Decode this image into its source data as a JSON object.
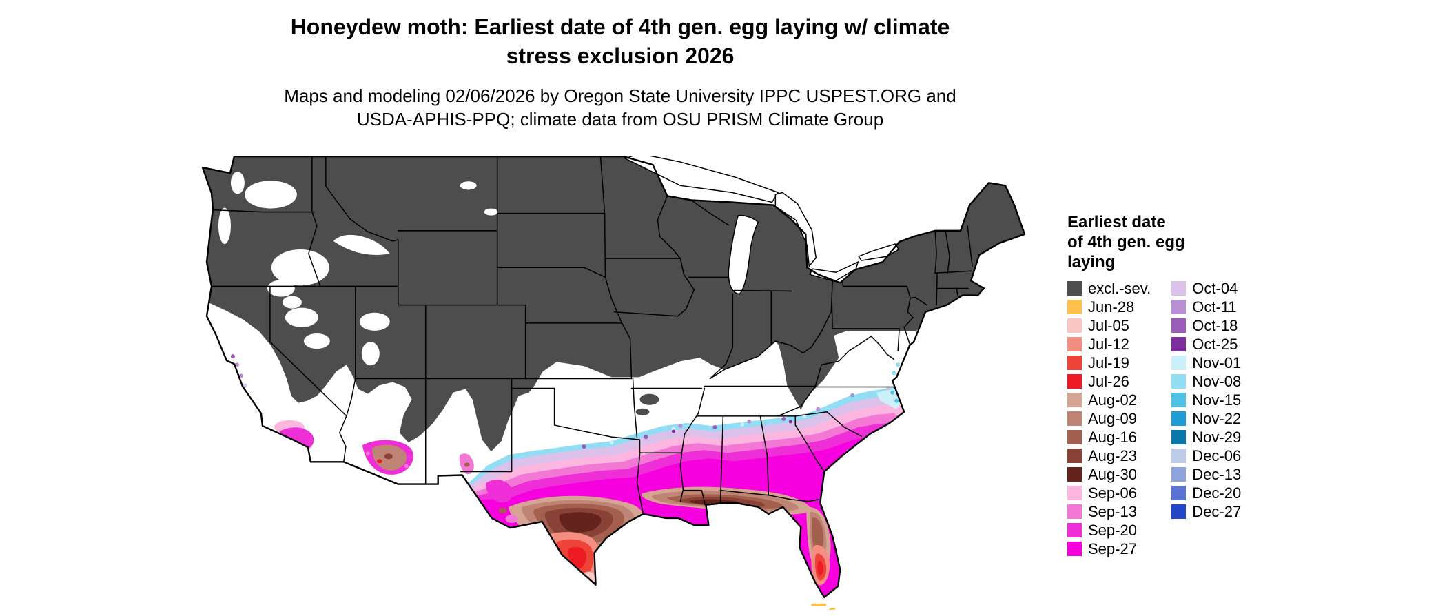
{
  "header": {
    "title_line1": "Honeydew moth: Earliest date of 4th gen. egg laying w/ climate",
    "title_line2": "stress exclusion 2026",
    "subtitle_line1": "Maps and modeling 02/06/2026 by Oregon State University IPPC USPEST.ORG and",
    "subtitle_line2": "USDA-APHIS-PPQ; climate data from OSU PRISM Climate Group"
  },
  "legend": {
    "title_lines": [
      "Earliest date",
      "of 4th gen. egg",
      "laying"
    ],
    "columns": [
      [
        {
          "label": "excl.-sev.",
          "color": "excl_sev"
        },
        {
          "label": "Jun-28",
          "color": "jun28"
        },
        {
          "label": "Jul-05",
          "color": "jul05"
        },
        {
          "label": "Jul-12",
          "color": "jul12"
        },
        {
          "label": "Jul-19",
          "color": "jul19"
        },
        {
          "label": "Jul-26",
          "color": "jul26"
        },
        {
          "label": "Aug-02",
          "color": "aug02"
        },
        {
          "label": "Aug-09",
          "color": "aug09"
        },
        {
          "label": "Aug-16",
          "color": "aug16"
        },
        {
          "label": "Aug-23",
          "color": "aug23"
        },
        {
          "label": "Aug-30",
          "color": "aug30"
        },
        {
          "label": "Sep-06",
          "color": "sep06"
        },
        {
          "label": "Sep-13",
          "color": "sep13"
        },
        {
          "label": "Sep-20",
          "color": "sep20"
        },
        {
          "label": "Sep-27",
          "color": "sep27"
        }
      ],
      [
        {
          "label": "Oct-04",
          "color": "oct04"
        },
        {
          "label": "Oct-11",
          "color": "oct11"
        },
        {
          "label": "Oct-18",
          "color": "oct18"
        },
        {
          "label": "Oct-25",
          "color": "oct25"
        },
        {
          "label": "Nov-01",
          "color": "nov01"
        },
        {
          "label": "Nov-08",
          "color": "nov08"
        },
        {
          "label": "Nov-15",
          "color": "nov15"
        },
        {
          "label": "Nov-22",
          "color": "nov22"
        },
        {
          "label": "Nov-29",
          "color": "nov29"
        },
        {
          "label": "Dec-06",
          "color": "dec06"
        },
        {
          "label": "Dec-13",
          "color": "dec13"
        },
        {
          "label": "Dec-20",
          "color": "dec20"
        },
        {
          "label": "Dec-27",
          "color": "dec27"
        }
      ]
    ]
  },
  "palette": {
    "excl_sev": "#4d4d4d",
    "jun28": "#ffc04d",
    "jul05": "#f9c6c3",
    "jul12": "#f58e82",
    "jul19": "#ee4338",
    "jul26": "#ed1b23",
    "aug02": "#d6a492",
    "aug09": "#bf8476",
    "aug16": "#a4604e",
    "aug23": "#8a4237",
    "aug30": "#64241d",
    "sep06": "#fcb6e0",
    "sep13": "#f378d5",
    "sep20": "#ee2ed6",
    "sep27": "#f700e0",
    "oct04": "#dcc2ea",
    "oct11": "#b98fd4",
    "oct18": "#9a5cb8",
    "oct25": "#7c2e9c",
    "nov01": "#cdf1fb",
    "nov08": "#92ddf4",
    "nov15": "#4fc1e5",
    "nov22": "#1f9cd4",
    "nov29": "#0b78ab",
    "dec06": "#bccce8",
    "dec13": "#8fa3dc",
    "dec20": "#5b74d4",
    "dec27": "#2646c8",
    "white": "#ffffff",
    "outline": "#000000"
  }
}
